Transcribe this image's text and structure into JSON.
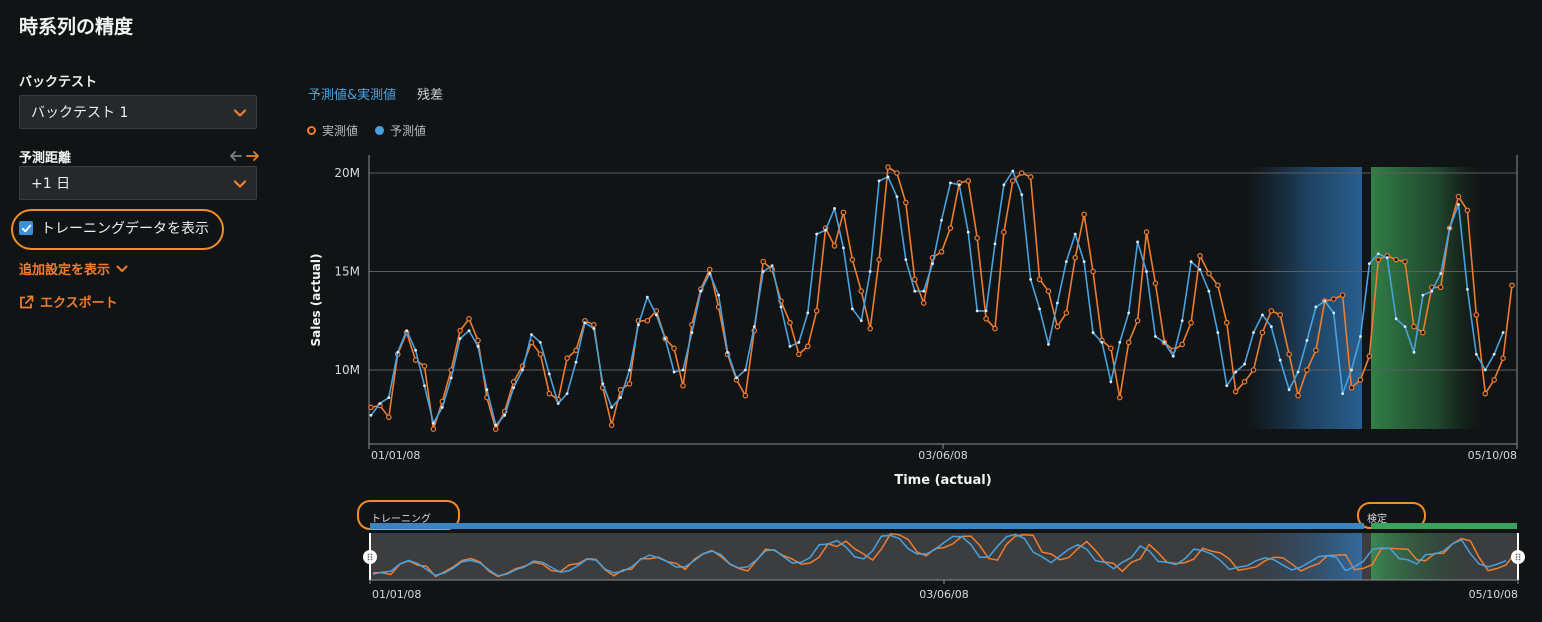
{
  "page": {
    "title": "時系列の精度"
  },
  "sidebar": {
    "backtest_label": "バックテスト",
    "backtest_value": "バックテスト 1",
    "horizon_label": "予測距離",
    "horizon_value": "+1 日",
    "show_training_label": "トレーニングデータを表示",
    "show_training_checked": true,
    "more_settings_label": "追加設定を表示",
    "export_label": "エクスポート"
  },
  "tabs": [
    {
      "label": "予測値&実測値",
      "active": true
    },
    {
      "label": "残差",
      "active": false
    }
  ],
  "legend": {
    "actual": "実測値",
    "predicted": "予測値"
  },
  "colors": {
    "actual": "#f07c2e",
    "predicted": "#4aa1de",
    "accent": "#ee7d2e",
    "training_band": "#3178b8",
    "validation_band": "#3a9a55"
  },
  "chart_data": {
    "type": "line",
    "xlabel": "Time (actual)",
    "ylabel": "Sales (actual)",
    "x_tick_labels": [
      "01/01/08",
      "03/06/08",
      "05/10/08"
    ],
    "y_tick_labels": [
      "10M",
      "15M",
      "20M"
    ],
    "y_ticks": [
      10,
      15,
      20
    ],
    "ylim": [
      6.3,
      21.0
    ],
    "grid": true,
    "series": [
      {
        "name": "実測値",
        "values": [
          8.1,
          8.2,
          7.6,
          10.8,
          11.9,
          10.5,
          10.2,
          7.0,
          8.4,
          10.0,
          12.0,
          12.6,
          11.5,
          8.6,
          7.0,
          7.9,
          9.4,
          10.2,
          11.4,
          10.8,
          8.8,
          8.5,
          10.6,
          11.0,
          12.5,
          12.3,
          9.1,
          7.2,
          9.0,
          9.3,
          12.5,
          12.5,
          13.0,
          11.6,
          11.1,
          9.2,
          12.3,
          14.1,
          15.1,
          13.2,
          10.8,
          9.5,
          8.7,
          12.0,
          15.5,
          15.1,
          13.5,
          12.4,
          10.8,
          11.2,
          13.0,
          17.2,
          16.3,
          18.0,
          15.6,
          14.0,
          12.1,
          15.6,
          20.3,
          20.0,
          18.5,
          14.6,
          13.4,
          15.7,
          16.0,
          17.2,
          19.5,
          19.6,
          16.7,
          12.6,
          12.1,
          17.0,
          19.6,
          20.0,
          19.8,
          14.6,
          14.0,
          12.2,
          12.9,
          15.7,
          17.9,
          15.0,
          11.5,
          11.1,
          8.6,
          11.4,
          12.5,
          17.0,
          14.4,
          11.4,
          11.0,
          11.3,
          12.4,
          15.8,
          14.9,
          14.3,
          12.4,
          8.9,
          9.4,
          10.0,
          11.9,
          13.0,
          12.8,
          10.8,
          8.7,
          10.0,
          11.0,
          13.5,
          13.6,
          13.8,
          9.1,
          9.5,
          10.7,
          15.6,
          15.8,
          15.6,
          15.5,
          12.2,
          11.9,
          14.2,
          14.2,
          17.2,
          18.8,
          18.1,
          12.8,
          8.8,
          9.5,
          10.6,
          14.3
        ]
      },
      {
        "name": "予測値",
        "values": [
          7.7,
          8.3,
          8.6,
          10.9,
          12.0,
          11.0,
          9.2,
          7.3,
          8.1,
          9.6,
          11.6,
          12.0,
          11.2,
          9.0,
          7.2,
          7.7,
          9.1,
          10.0,
          11.8,
          11.4,
          9.8,
          8.3,
          8.8,
          10.4,
          12.4,
          12.1,
          9.3,
          8.1,
          8.6,
          10.0,
          12.3,
          13.7,
          12.8,
          11.6,
          9.9,
          10.0,
          11.9,
          14.0,
          14.9,
          13.8,
          10.9,
          9.6,
          10.0,
          12.2,
          15.0,
          15.3,
          13.2,
          11.2,
          11.4,
          12.9,
          16.9,
          17.1,
          18.2,
          16.2,
          13.1,
          12.5,
          15.0,
          19.6,
          19.8,
          18.8,
          15.6,
          14.0,
          14.0,
          15.4,
          17.6,
          19.5,
          19.4,
          17.0,
          13.0,
          13.0,
          16.4,
          19.4,
          20.1,
          18.9,
          14.6,
          13.1,
          11.3,
          13.4,
          15.5,
          16.9,
          15.5,
          11.9,
          11.4,
          9.4,
          11.4,
          12.9,
          16.5,
          15.0,
          11.7,
          11.4,
          10.7,
          12.5,
          15.5,
          15.1,
          14.0,
          11.9,
          9.2,
          9.9,
          10.3,
          11.9,
          12.8,
          12.2,
          10.5,
          9.0,
          9.9,
          11.5,
          13.2,
          13.5,
          12.9,
          8.8,
          10.0,
          11.7,
          15.4,
          15.9,
          15.7,
          12.6,
          12.2,
          10.9,
          13.8,
          14.0,
          14.9,
          17.2,
          18.4,
          14.1,
          10.8,
          10.0,
          10.8,
          11.9
        ]
      }
    ],
    "navigator": {
      "training_label": "トレーニング",
      "validation_label": "検定"
    }
  }
}
